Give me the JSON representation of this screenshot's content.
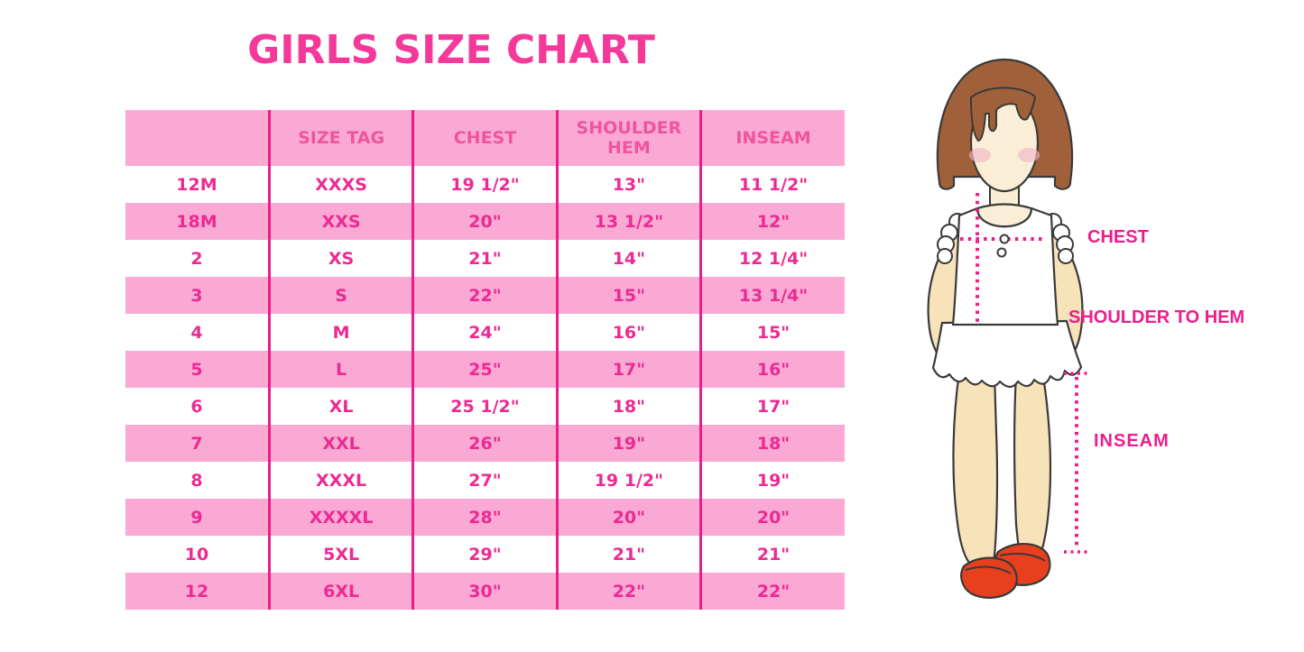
{
  "page": {
    "title": "GIRLS SIZE CHART"
  },
  "size_table": {
    "columns": [
      "",
      "SIZE TAG",
      "CHEST",
      "SHOULDER HEM",
      "INSEAM"
    ],
    "rows": [
      [
        "12M",
        "XXXS",
        "19 1/2\"",
        "13\"",
        "11 1/2\""
      ],
      [
        "18M",
        "XXS",
        "20\"",
        "13 1/2\"",
        "12\""
      ],
      [
        "2",
        "XS",
        "21\"",
        "14\"",
        "12 1/4\""
      ],
      [
        "3",
        "S",
        "22\"",
        "15\"",
        "13 1/4\""
      ],
      [
        "4",
        "M",
        "24\"",
        "16\"",
        "15\""
      ],
      [
        "5",
        "L",
        "25\"",
        "17\"",
        "16\""
      ],
      [
        "6",
        "XL",
        "25 1/2\"",
        "18\"",
        "17\""
      ],
      [
        "7",
        "XXL",
        "26\"",
        "19\"",
        "18\""
      ],
      [
        "8",
        "XXXL",
        "27\"",
        "19 1/2\"",
        "19\""
      ],
      [
        "9",
        "XXXXL",
        "28\"",
        "20\"",
        "20\""
      ],
      [
        "10",
        "5XL",
        "29\"",
        "21\"",
        "21\""
      ],
      [
        "12",
        "6XL",
        "30\"",
        "22\"",
        "22\""
      ]
    ]
  },
  "figure": {
    "labels": {
      "chest": "CHEST",
      "shoulder_to_hem": "SHOULDER TO HEM",
      "inseam": "INSEAM"
    }
  },
  "colors": {
    "title_pink": "#F5399A",
    "row_band_pink": "#F9A9D4",
    "divider_magenta": "#E91E8C",
    "header_text_pink": "#F0549F",
    "cell_text_pink": "#EC2A92",
    "measure_line_magenta": "#EC1E8C",
    "hair_brown": "#A0613A",
    "skin_tone": "#F8E2BA",
    "face_tone": "#FAEED6",
    "blush_pink": "#F2B9C8",
    "shoe_red": "#E8401F"
  }
}
